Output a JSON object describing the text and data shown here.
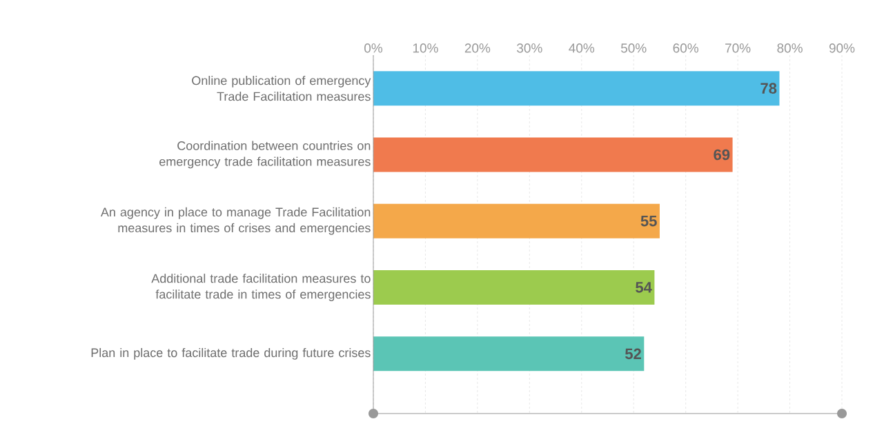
{
  "chart_data": {
    "type": "bar",
    "orientation": "horizontal",
    "categories": [
      "Online publication of emergency Trade Facilitation measures",
      "Coordination between countries on emergency trade facilitation measures",
      "An agency in place to manage Trade Facilitation measures in times of crises and emergencies",
      "Additional trade facilitation measures to facilitate trade in times of emergencies",
      "Plan in place to facilitate trade during future crises"
    ],
    "values": [
      78,
      69,
      55,
      54,
      52
    ],
    "colors": [
      "#4fbde6",
      "#f07a4e",
      "#f4a84a",
      "#9ccb4e",
      "#5bc5b5"
    ],
    "xlim": [
      0,
      90
    ],
    "xticks": [
      {
        "value": 0,
        "label": "0%"
      },
      {
        "value": 10,
        "label": "10%"
      },
      {
        "value": 20,
        "label": "20%"
      },
      {
        "value": 30,
        "label": "30%"
      },
      {
        "value": 40,
        "label": "40%"
      },
      {
        "value": 50,
        "label": "50%"
      },
      {
        "value": 60,
        "label": "60%"
      },
      {
        "value": 70,
        "label": "70%"
      },
      {
        "value": 80,
        "label": "80%"
      },
      {
        "value": 90,
        "label": "90%"
      }
    ],
    "grid": "x",
    "data_labels": true
  }
}
